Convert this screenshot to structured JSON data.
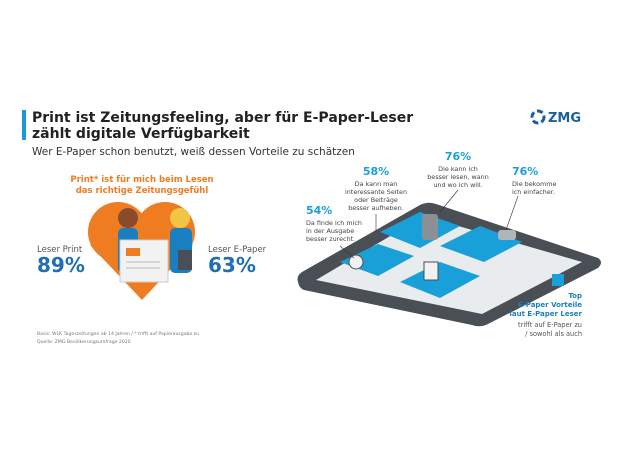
{
  "header": {
    "title_lines": [
      "Print ist Zeitungsfeeling, aber für E-Paper-Leser",
      "zählt digitale Verfügbarkeit"
    ],
    "subtitle": "Wer E-Paper schon benutzt, weiß dessen Vorteile zu schätzen",
    "logo": "ZMG"
  },
  "left": {
    "heading_lines": [
      "Print* ist für mich beim Lesen",
      "das richtige Zeitungsgefühl"
    ],
    "groups": [
      {
        "label": "Leser Print",
        "value": "89%"
      },
      {
        "label": "Leser E-Paper",
        "value": "63%"
      }
    ],
    "footnotes": [
      "Basis: WLK Tageszeitungen ab 14 Jahren / * trifft auf Papierausgabe zu",
      "Quelle: ZMG Bevölkerungsumfrage 2020"
    ]
  },
  "right": {
    "callouts": [
      {
        "value": "54%",
        "lines": [
          "Da finde ich mich",
          "in der Ausgabe",
          "besser zurecht."
        ]
      },
      {
        "value": "58%",
        "lines": [
          "Da kann man",
          "interessante Seiten",
          "oder Beiträge",
          "besser aufheben."
        ]
      },
      {
        "value": "76%",
        "lines": [
          "Die kann ich",
          "besser lesen, wann",
          "und wo ich will."
        ]
      },
      {
        "value": "76%",
        "lines": [
          "Die bekomme",
          "ich einfacher."
        ]
      }
    ],
    "legend": {
      "title_lines": [
        "Top",
        "E-Paper Vorteile",
        "laut E-Paper Leser"
      ],
      "note_lines": [
        "trifft auf E-Paper zu",
        "/ sowohl als auch"
      ]
    }
  }
}
